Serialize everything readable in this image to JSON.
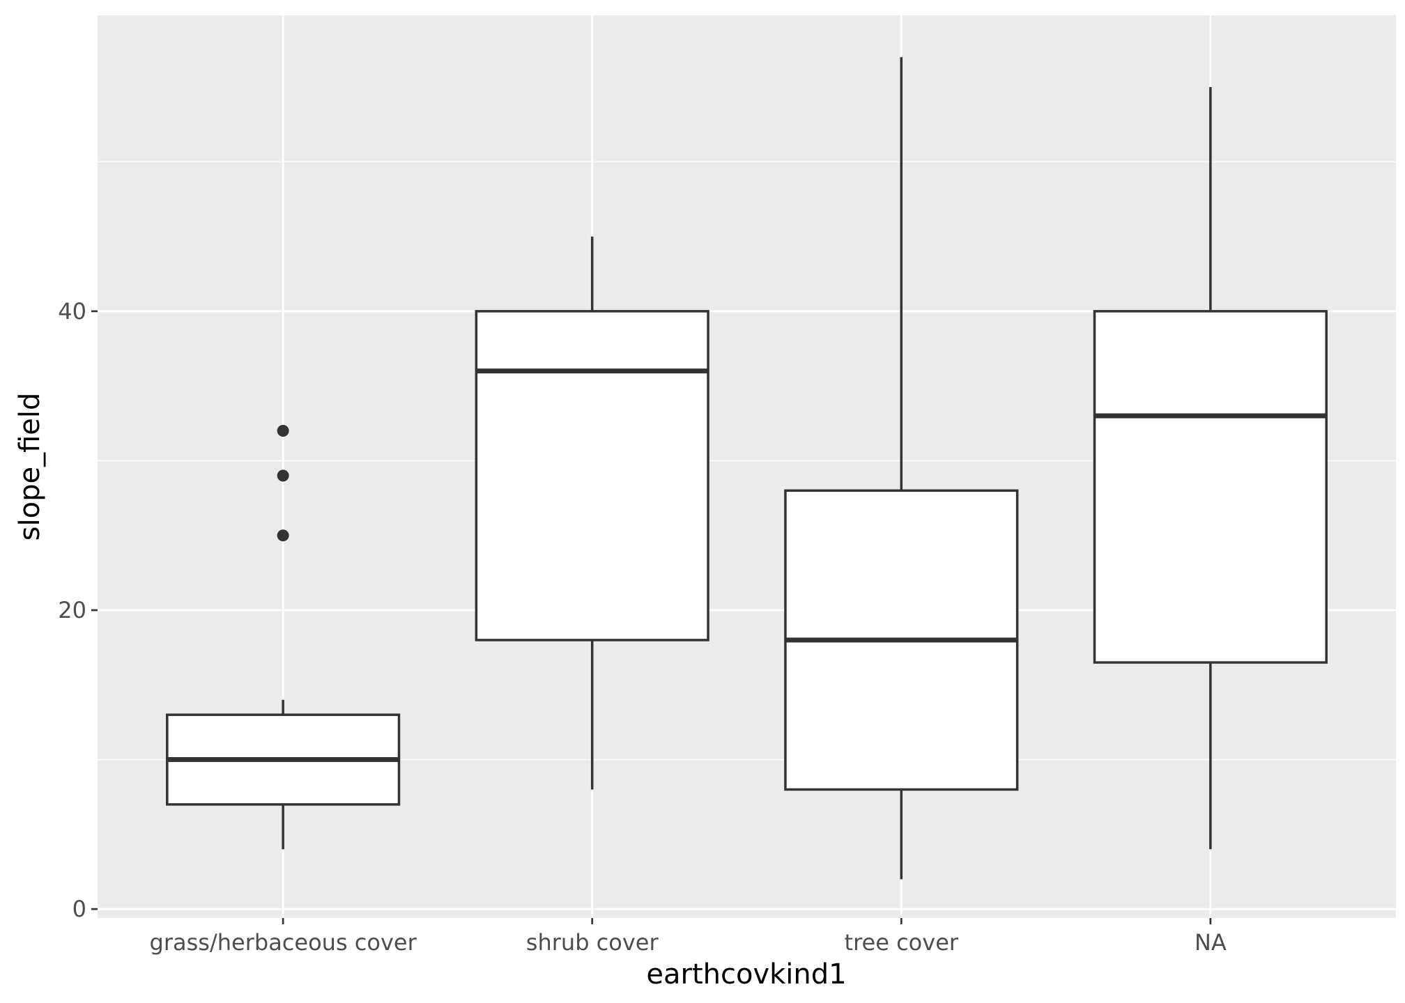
{
  "chart_data": {
    "type": "boxplot",
    "title": "",
    "xlabel": "earthcovkind1",
    "ylabel": "slope_field",
    "categories": [
      "grass/herbaceous cover",
      "shrub cover",
      "tree cover",
      "NA"
    ],
    "boxes": [
      {
        "category": "grass/herbaceous cover",
        "whisker_low": 4,
        "q1": 7,
        "median": 10,
        "q3": 13,
        "whisker_high": 14,
        "outliers": [
          25,
          29,
          32
        ]
      },
      {
        "category": "shrub cover",
        "whisker_low": 8,
        "q1": 18,
        "median": 36,
        "q3": 40,
        "whisker_high": 45,
        "outliers": []
      },
      {
        "category": "tree cover",
        "whisker_low": 2,
        "q1": 8,
        "median": 18,
        "q3": 28,
        "whisker_high": 57,
        "outliers": []
      },
      {
        "category": "NA",
        "whisker_low": 4,
        "q1": 16.5,
        "median": 33,
        "q3": 40,
        "whisker_high": 55,
        "outliers": []
      }
    ],
    "y_ticks": [
      0,
      20,
      40
    ],
    "y_tick_labels": [
      "0",
      "20",
      "40"
    ],
    "ylim": [
      -0.6,
      59.8
    ],
    "grid": true,
    "colors": {
      "panel": "#ebebeb",
      "grid": "#ffffff",
      "box_fill": "#ffffff",
      "box_stroke": "#333333",
      "tick_text": "#4d4d4d",
      "axis_title": "#000000"
    }
  }
}
